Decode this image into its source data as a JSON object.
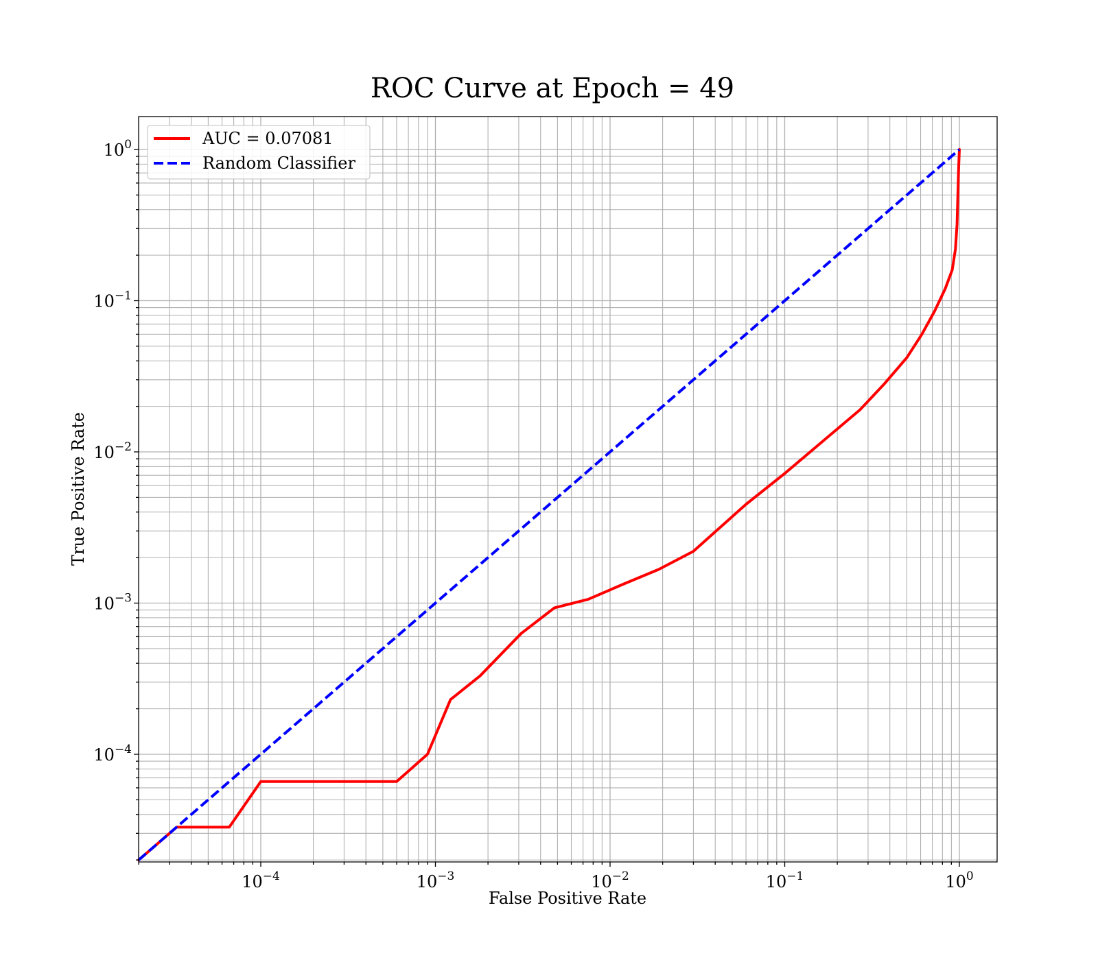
{
  "chart_data": {
    "type": "line",
    "title": "ROC Curve at Epoch = 49",
    "xlabel": "False Positive Rate",
    "ylabel": "True Positive Rate",
    "xscale": "log",
    "yscale": "log",
    "xlim": [
      2e-05,
      1.6
    ],
    "ylim": [
      2e-05,
      1.6
    ],
    "grid": "on (major and minor)",
    "legend_position": "upper-left",
    "x_ticks": [
      {
        "base": "10",
        "exp": "−4",
        "value": 0.0001
      },
      {
        "base": "10",
        "exp": "−3",
        "value": 0.001
      },
      {
        "base": "10",
        "exp": "−2",
        "value": 0.01
      },
      {
        "base": "10",
        "exp": "−1",
        "value": 0.1
      },
      {
        "base": "10",
        "exp": "0",
        "value": 1
      }
    ],
    "y_ticks": [
      {
        "base": "10",
        "exp": "−4",
        "value": 0.0001
      },
      {
        "base": "10",
        "exp": "−3",
        "value": 0.001
      },
      {
        "base": "10",
        "exp": "−2",
        "value": 0.01
      },
      {
        "base": "10",
        "exp": "−1",
        "value": 0.1
      },
      {
        "base": "10",
        "exp": "0",
        "value": 1
      }
    ],
    "series": [
      {
        "name": "AUC = 0.07081",
        "color": "#ff0000",
        "style": "solid",
        "x": [
          2e-05,
          3.3e-05,
          6.6e-05,
          0.0001,
          0.0006,
          0.0009,
          0.00122,
          0.0018,
          0.0031,
          0.0048,
          0.0075,
          0.012,
          0.019,
          0.03,
          0.06,
          0.1,
          0.18,
          0.27,
          0.37,
          0.5,
          0.61,
          0.72,
          0.83,
          0.91,
          0.95,
          0.97,
          0.98,
          0.99,
          1.0
        ],
        "y": [
          2e-05,
          3.3e-05,
          3.3e-05,
          6.6e-05,
          6.6e-05,
          0.0001,
          0.00023,
          0.00033,
          0.00063,
          0.00093,
          0.00106,
          0.00134,
          0.00167,
          0.0022,
          0.0045,
          0.0072,
          0.0128,
          0.019,
          0.028,
          0.042,
          0.06,
          0.085,
          0.12,
          0.16,
          0.22,
          0.32,
          0.5,
          0.75,
          1.0
        ]
      },
      {
        "name": "Random Classifier",
        "color": "#0000ff",
        "style": "dashed",
        "x": [
          2e-05,
          1.0
        ],
        "y": [
          2e-05,
          1.0
        ]
      }
    ]
  }
}
